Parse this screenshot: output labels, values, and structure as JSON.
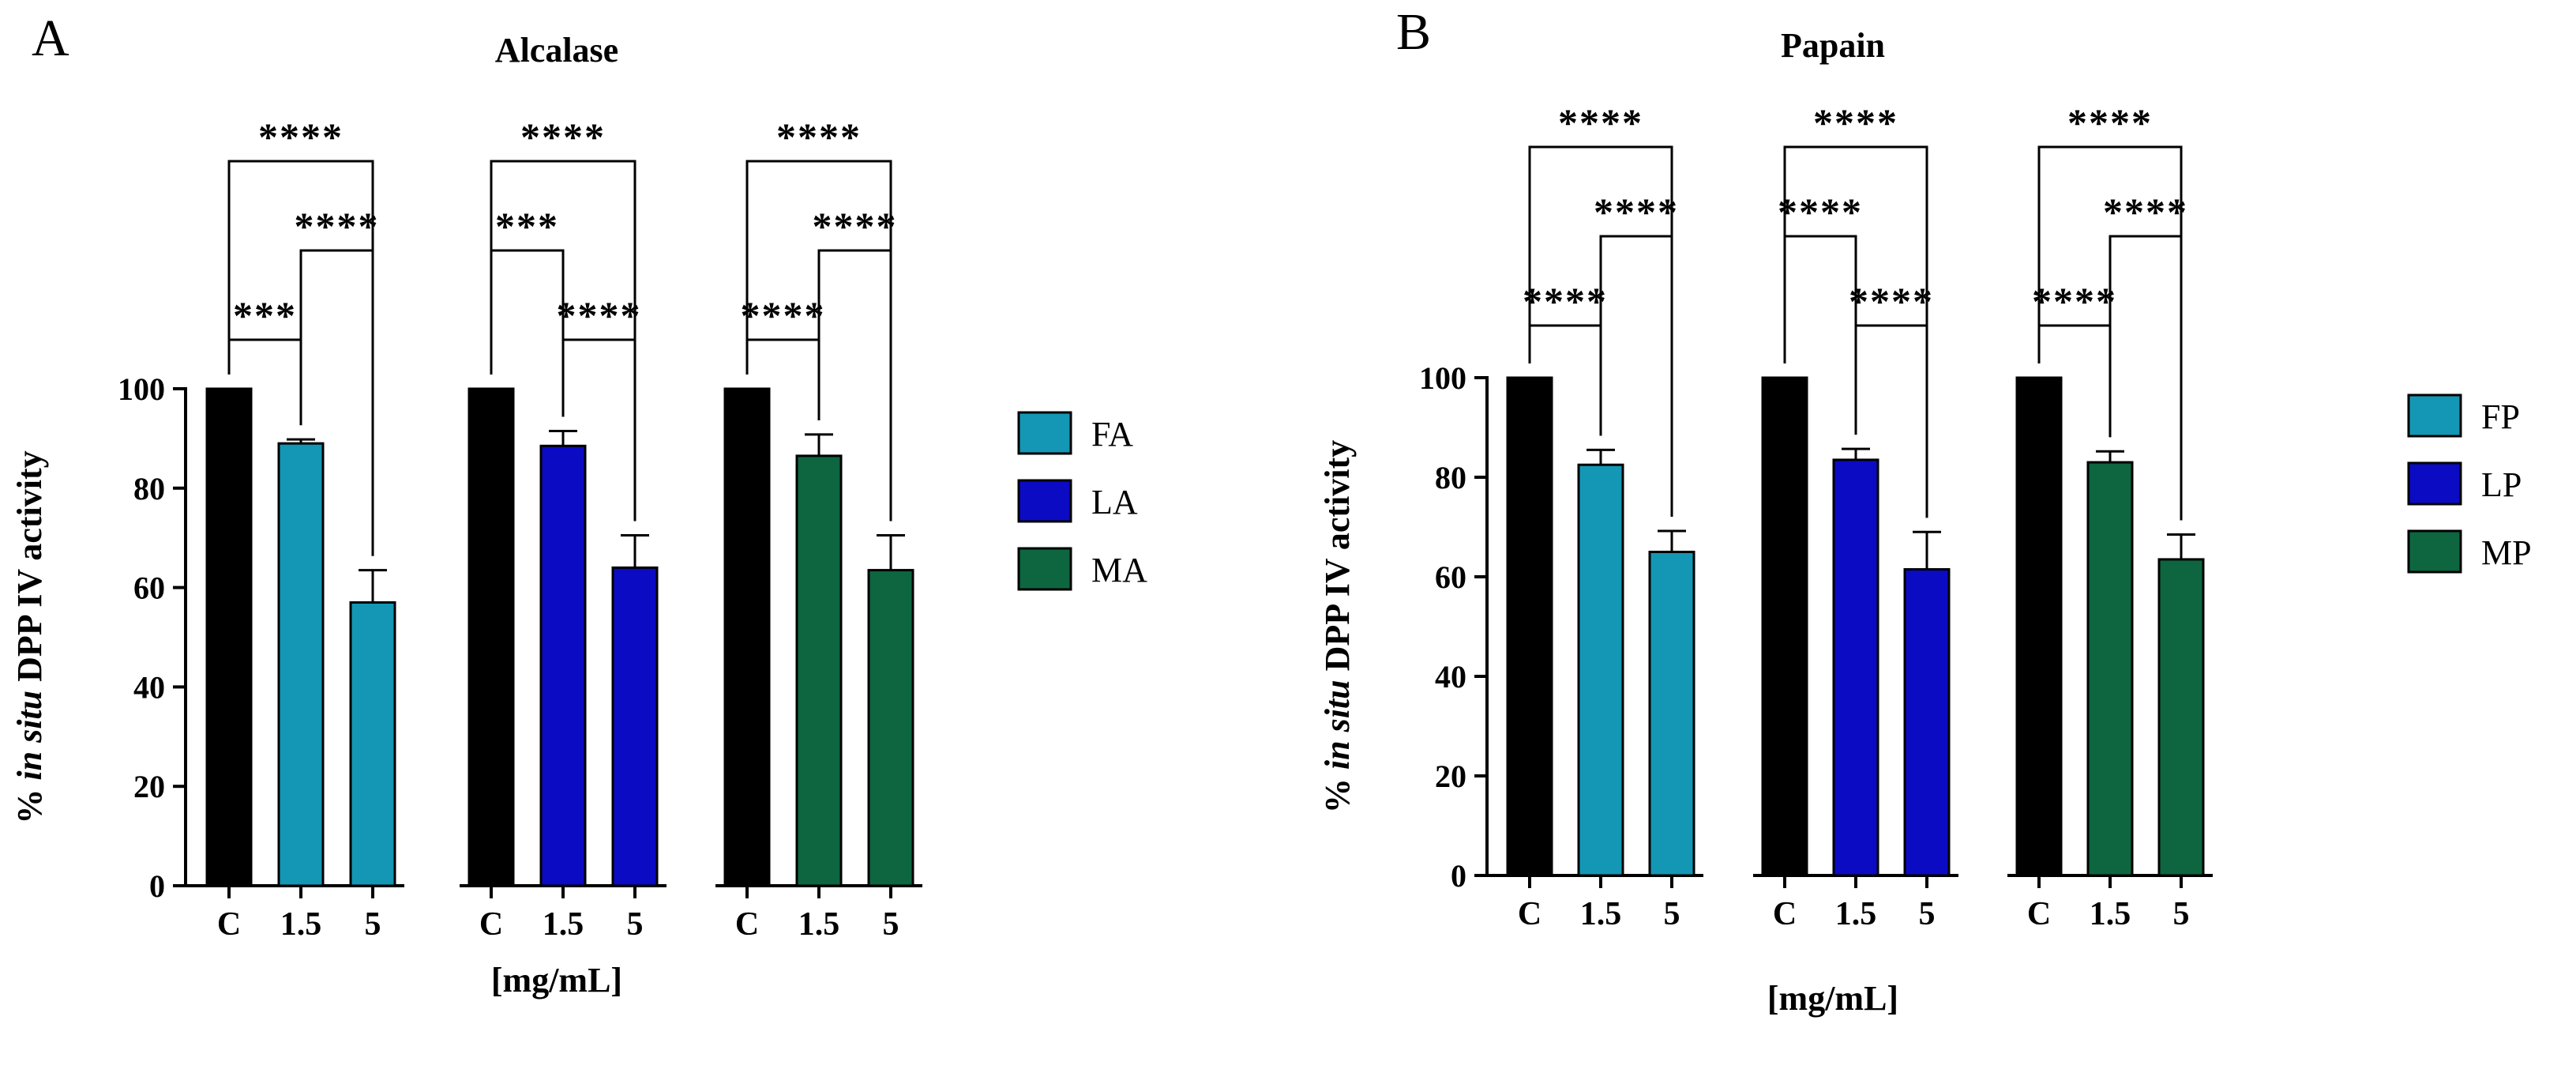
{
  "colors": {
    "control": "#000000",
    "F": "#1497b5",
    "L": "#0b0bc4",
    "M": "#0d6640"
  },
  "chart_data": [
    {
      "type": "bar",
      "panel": "A",
      "title": "Alcalase",
      "ylabel_prefix": "% ",
      "ylabel_italic": "in situ",
      "ylabel_suffix": " DPP IV activity",
      "xlabel": "[mg/mL]",
      "ylim": [
        0,
        100
      ],
      "yticks": [
        "0",
        "20",
        "40",
        "60",
        "80",
        "100"
      ],
      "groups": [
        {
          "name": "FA",
          "color_key": "F",
          "bars": [
            {
              "label": "C",
              "value": 100,
              "error": 0,
              "control": true
            },
            {
              "label": "1.5",
              "value": 89,
              "error": 0.8,
              "control": false
            },
            {
              "label": "5",
              "value": 57,
              "error": 6.5,
              "control": false
            }
          ],
          "significance": [
            {
              "from": 0,
              "to": 1,
              "level": 0,
              "label": "***"
            },
            {
              "from": 1,
              "to": 2,
              "level": 1,
              "label": "****"
            },
            {
              "from": 0,
              "to": 2,
              "level": 2,
              "label": "****"
            }
          ]
        },
        {
          "name": "LA",
          "color_key": "L",
          "bars": [
            {
              "label": "C",
              "value": 100,
              "error": 0,
              "control": true
            },
            {
              "label": "1.5",
              "value": 88.5,
              "error": 3,
              "control": false
            },
            {
              "label": "5",
              "value": 64,
              "error": 6.5,
              "control": false
            }
          ],
          "significance": [
            {
              "from": 1,
              "to": 2,
              "level": 0,
              "label": "****"
            },
            {
              "from": 0,
              "to": 1,
              "level": 1,
              "label": "***"
            },
            {
              "from": 0,
              "to": 2,
              "level": 2,
              "label": "****"
            }
          ]
        },
        {
          "name": "MA",
          "color_key": "M",
          "bars": [
            {
              "label": "C",
              "value": 100,
              "error": 0,
              "control": true
            },
            {
              "label": "1.5",
              "value": 86.5,
              "error": 4.3,
              "control": false
            },
            {
              "label": "5",
              "value": 63.5,
              "error": 7,
              "control": false
            }
          ],
          "significance": [
            {
              "from": 0,
              "to": 1,
              "level": 0,
              "label": "****"
            },
            {
              "from": 1,
              "to": 2,
              "level": 1,
              "label": "****"
            },
            {
              "from": 0,
              "to": 2,
              "level": 2,
              "label": "****"
            }
          ]
        }
      ],
      "legend": [
        {
          "label": "FA",
          "color_key": "F"
        },
        {
          "label": "LA",
          "color_key": "L"
        },
        {
          "label": "MA",
          "color_key": "M"
        }
      ]
    },
    {
      "type": "bar",
      "panel": "B",
      "title": "Papain",
      "ylabel_prefix": "% ",
      "ylabel_italic": "in situ",
      "ylabel_suffix": " DPP IV activity",
      "xlabel": "[mg/mL]",
      "ylim": [
        0,
        100
      ],
      "yticks": [
        "0",
        "20",
        "40",
        "60",
        "80",
        "100"
      ],
      "groups": [
        {
          "name": "FP",
          "color_key": "F",
          "bars": [
            {
              "label": "C",
              "value": 100,
              "error": 0,
              "control": true
            },
            {
              "label": "1.5",
              "value": 82.5,
              "error": 3,
              "control": false
            },
            {
              "label": "5",
              "value": 65,
              "error": 4.2,
              "control": false
            }
          ],
          "significance": [
            {
              "from": 0,
              "to": 1,
              "level": 0,
              "label": "****"
            },
            {
              "from": 1,
              "to": 2,
              "level": 1,
              "label": "****"
            },
            {
              "from": 0,
              "to": 2,
              "level": 2,
              "label": "****"
            }
          ]
        },
        {
          "name": "LP",
          "color_key": "L",
          "bars": [
            {
              "label": "C",
              "value": 100,
              "error": 0,
              "control": true
            },
            {
              "label": "1.5",
              "value": 83.5,
              "error": 2.2,
              "control": false
            },
            {
              "label": "5",
              "value": 61.5,
              "error": 7.5,
              "control": false
            }
          ],
          "significance": [
            {
              "from": 1,
              "to": 2,
              "level": 0,
              "label": "****"
            },
            {
              "from": 0,
              "to": 1,
              "level": 1,
              "label": "****"
            },
            {
              "from": 0,
              "to": 2,
              "level": 2,
              "label": "****"
            }
          ]
        },
        {
          "name": "MP",
          "color_key": "M",
          "bars": [
            {
              "label": "C",
              "value": 100,
              "error": 0,
              "control": true
            },
            {
              "label": "1.5",
              "value": 83,
              "error": 2.2,
              "control": false
            },
            {
              "label": "5",
              "value": 63.5,
              "error": 5,
              "control": false
            }
          ],
          "significance": [
            {
              "from": 0,
              "to": 1,
              "level": 0,
              "label": "****"
            },
            {
              "from": 1,
              "to": 2,
              "level": 1,
              "label": "****"
            },
            {
              "from": 0,
              "to": 2,
              "level": 2,
              "label": "****"
            }
          ]
        }
      ],
      "legend": [
        {
          "label": "FP",
          "color_key": "F"
        },
        {
          "label": "LP",
          "color_key": "L"
        },
        {
          "label": "MP",
          "color_key": "M"
        }
      ]
    }
  ]
}
